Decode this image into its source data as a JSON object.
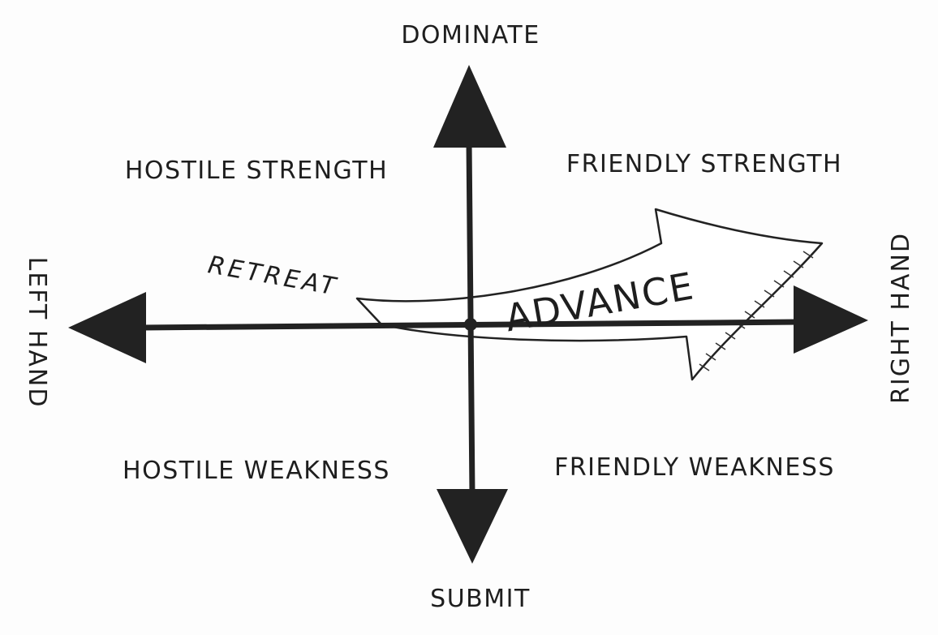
{
  "axes": {
    "top": "DOMINATE",
    "bottom": "SUBMIT",
    "left": "LEFT HAND",
    "right": "RIGHT HAND"
  },
  "quadrants": {
    "top_left": "HOSTILE STRENGTH",
    "top_right": "FRIENDLY STRENGTH",
    "bottom_left": "HOSTILE WEAKNESS",
    "bottom_right": "FRIENDLY WEAKNESS"
  },
  "movement": {
    "retreat": "RETREAT",
    "advance": "ADVANCE"
  }
}
